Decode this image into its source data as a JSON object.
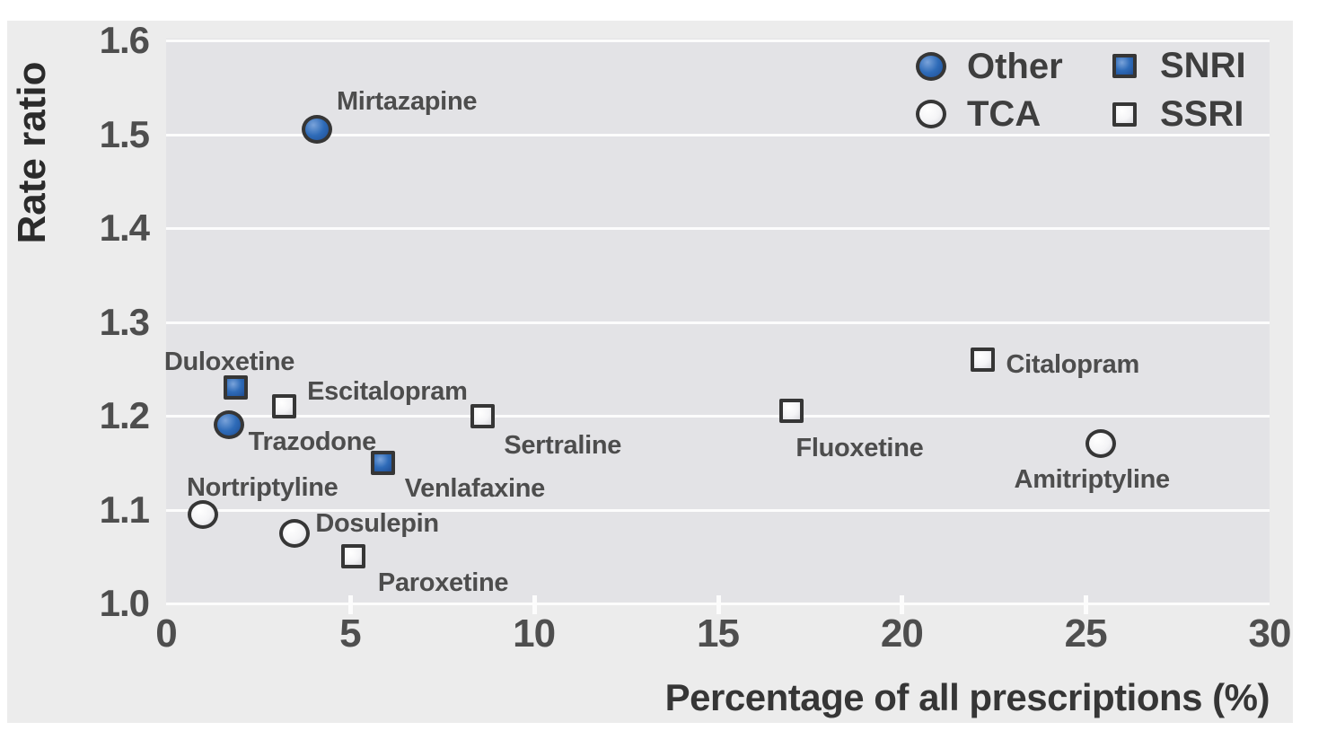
{
  "figure": {
    "y_axis_title": "Rate ratio",
    "x_axis_title": "Percentage of all prescriptions (%)"
  },
  "colors": {
    "page_bg": "#ffffff",
    "figure_bg": "#ececec",
    "plot_bg": "#e3e3e6",
    "gridline": "#fcfcfc",
    "tick_label": "#4e4e4e",
    "axis_title": "#2b2b2b",
    "point_label": "#4d4d4d",
    "marker_outline": "#363636",
    "blue_marker": "#2e6bb8",
    "white_marker": "#f4f4f6"
  },
  "legend": {
    "items": [
      {
        "label": "Other",
        "marker": "circle",
        "fill": "blue"
      },
      {
        "label": "SNRI",
        "marker": "square",
        "fill": "blue"
      },
      {
        "label": "TCA",
        "marker": "circle",
        "fill": "white"
      },
      {
        "label": "SSRI",
        "marker": "square",
        "fill": "white"
      }
    ]
  },
  "chart_data": {
    "type": "scatter",
    "title": "",
    "xlabel": "Percentage of all prescriptions (%)",
    "ylabel": "Rate ratio",
    "xlim": [
      0,
      30
    ],
    "ylim": [
      1.0,
      1.6
    ],
    "x_ticks": [
      0,
      5,
      10,
      15,
      20,
      25,
      30
    ],
    "y_ticks": [
      1.0,
      1.1,
      1.2,
      1.3,
      1.4,
      1.5,
      1.6
    ],
    "grid": "horizontal-white-gridlines",
    "legend_position": "top-right-inside-plot",
    "series": [
      {
        "name": "Other",
        "marker": "circle",
        "fill": "blue",
        "points": [
          {
            "label": "Mirtazapine",
            "x": 4.1,
            "y": 1.505,
            "label_dx": 22,
            "label_dy": -46
          },
          {
            "label": "Trazodone",
            "x": 1.7,
            "y": 1.19,
            "label_dx": 22,
            "label_dy": 4
          }
        ]
      },
      {
        "name": "SNRI",
        "marker": "square",
        "fill": "blue",
        "points": [
          {
            "label": "Duloxetine",
            "x": 1.9,
            "y": 1.23,
            "label_dx": -80,
            "label_dy": -44
          },
          {
            "label": "Venlafaxine",
            "x": 5.9,
            "y": 1.15,
            "label_dx": 24,
            "label_dy": 14
          }
        ]
      },
      {
        "name": "TCA",
        "marker": "circle",
        "fill": "white",
        "points": [
          {
            "label": "Nortriptyline",
            "x": 1.0,
            "y": 1.095,
            "label_dx": -18,
            "label_dy": -45
          },
          {
            "label": "Dosulepin",
            "x": 3.5,
            "y": 1.075,
            "label_dx": 23,
            "label_dy": -26
          },
          {
            "label": "Amitriptyline",
            "x": 25.4,
            "y": 1.17,
            "label_dx": -96,
            "label_dy": 25
          }
        ]
      },
      {
        "name": "SSRI",
        "marker": "square",
        "fill": "white",
        "points": [
          {
            "label": "Escitalopram",
            "x": 3.2,
            "y": 1.21,
            "label_dx": 26,
            "label_dy": -32
          },
          {
            "label": "Sertraline",
            "x": 8.6,
            "y": 1.2,
            "label_dx": 24,
            "label_dy": 18
          },
          {
            "label": "Paroxetine",
            "x": 5.1,
            "y": 1.05,
            "label_dx": 27,
            "label_dy": 14
          },
          {
            "label": "Fluoxetine",
            "x": 17.0,
            "y": 1.205,
            "label_dx": 5,
            "label_dy": 26
          },
          {
            "label": "Citalopram",
            "x": 22.2,
            "y": 1.26,
            "label_dx": 26,
            "label_dy": -9
          }
        ]
      }
    ]
  }
}
